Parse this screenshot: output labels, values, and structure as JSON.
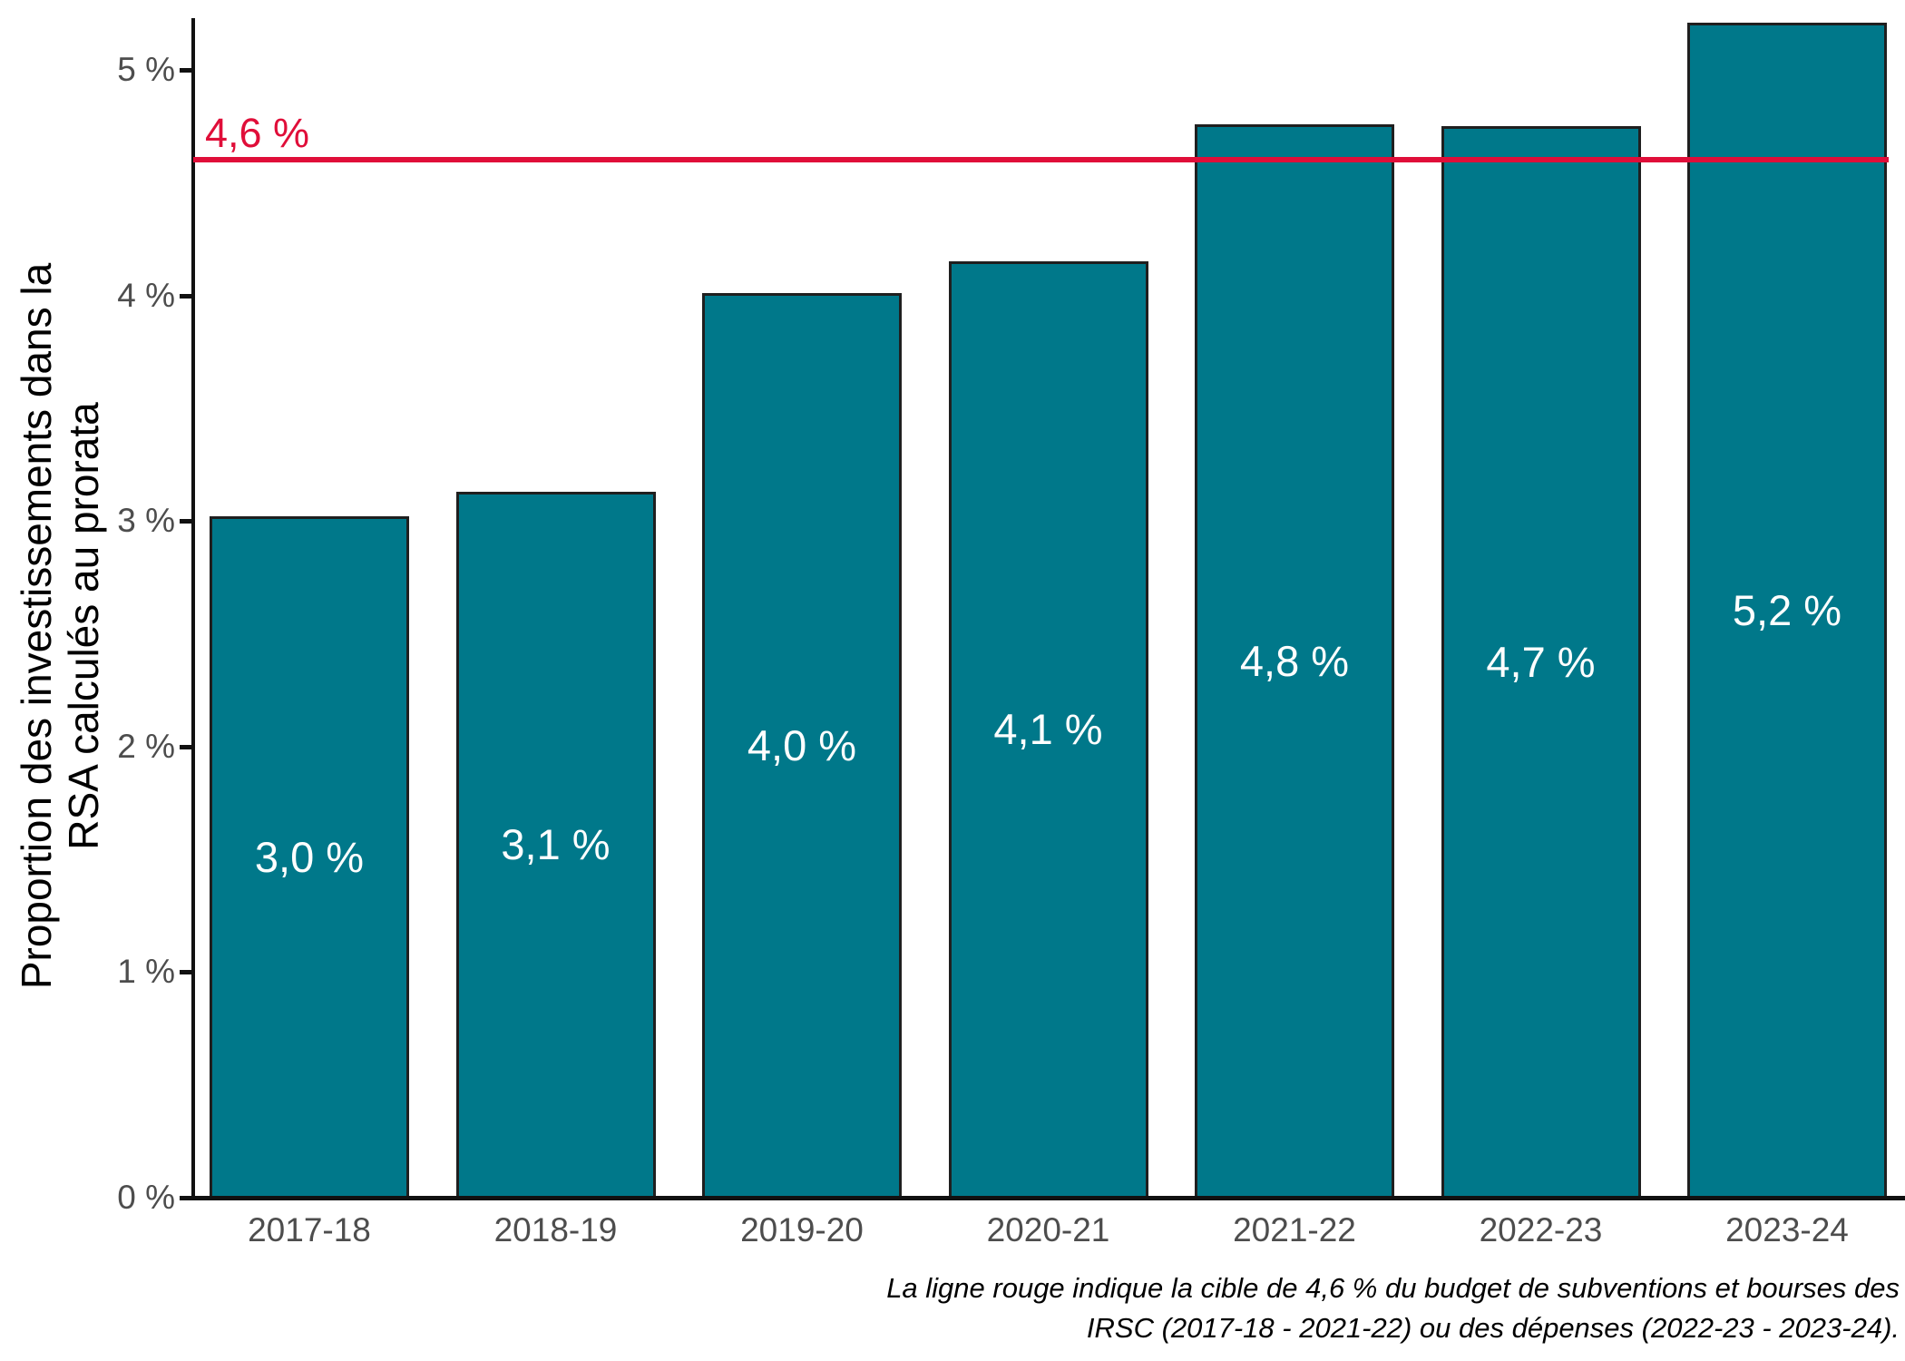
{
  "chart_data": {
    "type": "bar",
    "title": "",
    "categories": [
      "2017-18",
      "2018-19",
      "2019-20",
      "2020-21",
      "2021-22",
      "2022-23",
      "2023-24"
    ],
    "values": [
      3.0,
      3.1,
      4.0,
      4.1,
      4.8,
      4.7,
      5.2
    ],
    "bar_value_labels": [
      "3,0 %",
      "3,1 %",
      "4,0 %",
      "4,1 %",
      "4,8 %",
      "4,7 %",
      "5,2 %"
    ],
    "bar_heights_precise_pct": [
      3.02,
      3.13,
      4.01,
      4.15,
      4.76,
      4.75,
      5.21
    ],
    "xlabel": "",
    "ylabel_line1": "Proportion des investissements dans la",
    "ylabel_line2": "RSA calculés au prorata",
    "y_tick_labels": [
      "0 %",
      "1 %",
      "2 %",
      "3 %",
      "4 %",
      "5 %"
    ],
    "y_tick_values": [
      0,
      1,
      2,
      3,
      4,
      5
    ],
    "ylim": [
      0,
      5.25
    ],
    "grid": false,
    "legend": "none",
    "reference_line": {
      "value": 4.6,
      "label": "4,6 %"
    },
    "caption_line1": "La ligne rouge indique la cible de 4,6 % du budget de subventions et bourses des",
    "caption_line2": "IRSC (2017-18 - 2021-22) ou des dépenses (2022-23 - 2023-24).",
    "colors": {
      "bar_fill": "#00788A",
      "bar_border": "#1F1F1F",
      "bar_label_text": "#FFFFFF",
      "axis_line": "#111111",
      "tick_text": "#4D4D4D",
      "axis_title_text": "#000000",
      "reference_red": "#E00E39"
    }
  }
}
